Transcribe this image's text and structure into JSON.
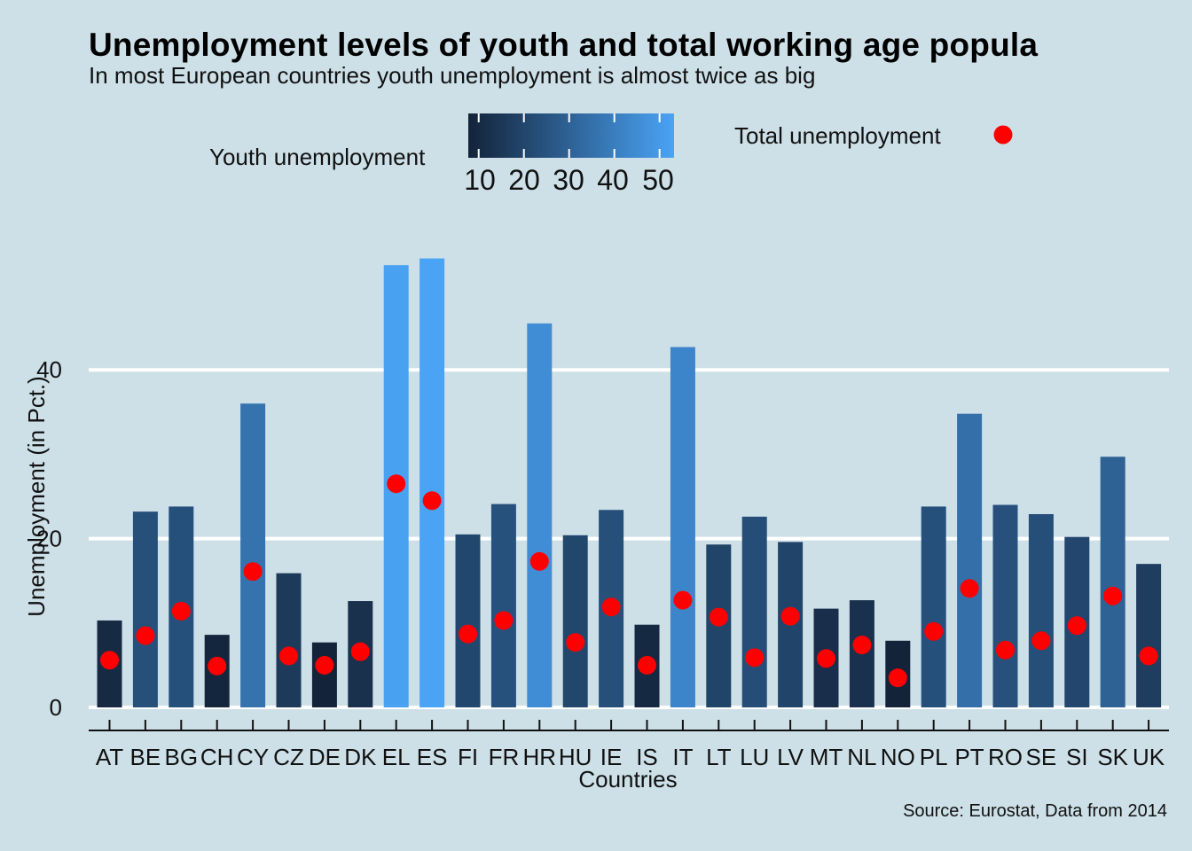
{
  "title": "Unemployment levels of youth and total working age popula",
  "subtitle": "In most European countries youth unemployment is almost twice as big",
  "caption": "Source: Eurostat, Data from 2014",
  "chart_data": {
    "type": "bar",
    "xlabel": "Countries",
    "ylabel": "Unemployment (in Pct.)",
    "ylim": [
      0,
      55
    ],
    "yticks": [
      0,
      20,
      40
    ],
    "grid": true,
    "legend_position": "top",
    "colors": {
      "low": "#132339",
      "high": "#4aa3f5",
      "point": "#ff0000",
      "background": "#cde0e8",
      "grid": "#ffffff"
    },
    "legend": {
      "fill_title": "Youth unemployment",
      "fill_ticks": [
        10,
        20,
        30,
        40,
        50
      ],
      "fill_range": [
        7.7,
        53.2
      ],
      "point_label": "Total unemployment"
    },
    "categories": [
      "AT",
      "BE",
      "BG",
      "CH",
      "CY",
      "CZ",
      "DE",
      "DK",
      "EL",
      "ES",
      "FI",
      "FR",
      "HR",
      "HU",
      "IE",
      "IS",
      "IT",
      "LT",
      "LU",
      "LV",
      "MT",
      "NL",
      "NO",
      "PL",
      "PT",
      "RO",
      "SE",
      "SI",
      "SK",
      "UK"
    ],
    "series": [
      {
        "name": "Youth unemployment",
        "kind": "bar",
        "values": [
          10.3,
          23.2,
          23.8,
          8.6,
          36.0,
          15.9,
          7.7,
          12.6,
          52.4,
          53.2,
          20.5,
          24.1,
          45.5,
          20.4,
          23.4,
          9.8,
          42.7,
          19.3,
          22.6,
          19.6,
          11.7,
          12.7,
          7.9,
          23.8,
          34.8,
          24.0,
          22.9,
          20.2,
          29.7,
          17.0
        ]
      },
      {
        "name": "Total unemployment",
        "kind": "point",
        "values": [
          5.6,
          8.5,
          11.4,
          4.9,
          16.1,
          6.1,
          5.0,
          6.6,
          26.5,
          24.5,
          8.7,
          10.3,
          17.3,
          7.7,
          11.9,
          5.0,
          12.7,
          10.7,
          5.9,
          10.8,
          5.8,
          7.4,
          3.5,
          9.0,
          14.1,
          6.8,
          7.9,
          9.7,
          13.2,
          6.1
        ]
      }
    ]
  }
}
